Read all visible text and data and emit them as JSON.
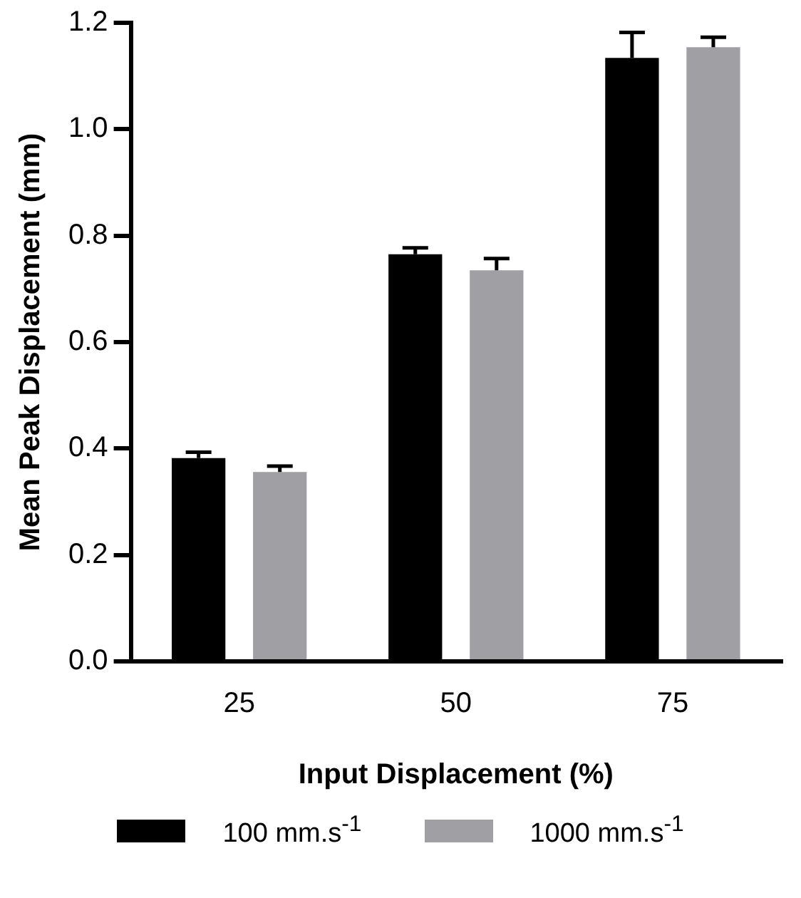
{
  "chart_data": {
    "type": "bar",
    "xlabel": "Input Displacement (%)",
    "ylabel": "Mean Peak Displacement (mm)",
    "categories": [
      "25",
      "50",
      "75"
    ],
    "series": [
      {
        "name": "100 mm.s$^{-1}$",
        "color": "#000000",
        "values": [
          0.382,
          0.765,
          1.134
        ],
        "errors": [
          [
            0.382,
            0.393
          ],
          [
            0.765,
            0.777
          ],
          [
            1.134,
            1.182
          ]
        ]
      },
      {
        "name": "1000 mm.s$^{-1}$",
        "color": "#a09fa4",
        "values": [
          0.356,
          0.735,
          1.154
        ],
        "errors": [
          [
            0.356,
            0.367
          ],
          [
            0.735,
            0.757
          ],
          [
            1.154,
            1.173
          ]
        ]
      }
    ],
    "ylim": [
      0,
      1.2
    ],
    "yticks": [
      {
        "value": 0,
        "label": "0.0"
      },
      0.2,
      0.4,
      0.6,
      0.8,
      {
        "value": 1,
        "label": "1.0"
      },
      1.2
    ],
    "grid": false,
    "legend": "bottom"
  }
}
